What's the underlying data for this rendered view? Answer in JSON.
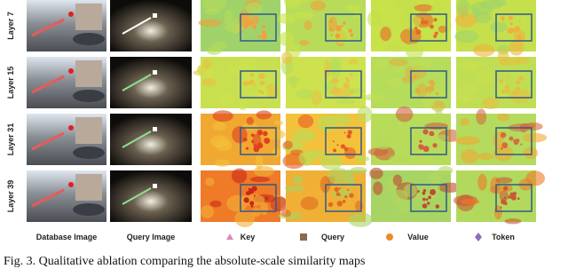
{
  "row_labels": [
    "Layer 7",
    "Layer 15",
    "Layer 31",
    "Layer 39"
  ],
  "column_labels": [
    "Database Image",
    "Query Image",
    "Key",
    "Query",
    "Value",
    "Token"
  ],
  "caption": "Fig. 3.   Qualitative ablation comparing the absolute-scale similarity maps"
}
